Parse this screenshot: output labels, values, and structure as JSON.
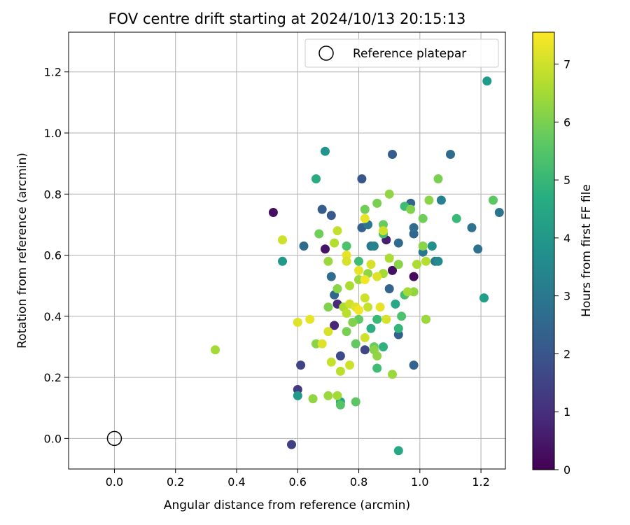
{
  "chart_data": {
    "type": "scatter",
    "title": "FOV centre drift starting at 2024/10/13 20:15:13",
    "xlabel": "Angular distance from reference (arcmin)",
    "ylabel": "Rotation from reference (arcmin)",
    "xlim": [
      -0.15,
      1.28
    ],
    "ylim": [
      -0.1,
      1.33
    ],
    "xticks": [
      "0.0",
      "0.2",
      "0.4",
      "0.6",
      "0.8",
      "1.0",
      "1.2"
    ],
    "yticks": [
      "0.0",
      "0.2",
      "0.4",
      "0.6",
      "0.8",
      "1.0",
      "1.2"
    ],
    "grid": true,
    "legend": {
      "position": "top-right",
      "entries": [
        "Reference platepar"
      ]
    },
    "reference": {
      "x": 0.0,
      "y": 0.0,
      "label": "Reference platepar"
    },
    "colorbar": {
      "label": "Hours from first FF file",
      "range": [
        0,
        7.55
      ],
      "ticks": [
        "0",
        "1",
        "2",
        "3",
        "4",
        "5",
        "6",
        "7"
      ],
      "colormap": "viridis"
    },
    "points": [
      [
        0.52,
        0.74,
        0.3
      ],
      [
        0.69,
        0.62,
        0.4
      ],
      [
        0.98,
        0.53,
        0.2
      ],
      [
        0.91,
        0.55,
        0.3
      ],
      [
        0.89,
        0.65,
        0.6
      ],
      [
        0.72,
        0.37,
        0.8
      ],
      [
        0.73,
        0.44,
        0.9
      ],
      [
        0.58,
        -0.02,
        1.4
      ],
      [
        0.6,
        0.16,
        1.3
      ],
      [
        0.61,
        0.24,
        1.5
      ],
      [
        0.74,
        0.27,
        1.7
      ],
      [
        0.82,
        0.29,
        1.6
      ],
      [
        0.81,
        0.85,
        2.0
      ],
      [
        0.91,
        0.93,
        2.2
      ],
      [
        0.68,
        0.75,
        2.2
      ],
      [
        0.71,
        0.73,
        2.1
      ],
      [
        0.81,
        0.69,
        2.3
      ],
      [
        0.62,
        0.63,
        2.6
      ],
      [
        0.71,
        0.53,
        2.7
      ],
      [
        0.72,
        0.47,
        2.5
      ],
      [
        0.9,
        0.49,
        2.4
      ],
      [
        0.93,
        0.34,
        2.3
      ],
      [
        0.98,
        0.24,
        2.4
      ],
      [
        0.93,
        0.64,
        2.6
      ],
      [
        0.98,
        0.67,
        2.5
      ],
      [
        1.1,
        0.93,
        2.6
      ],
      [
        0.97,
        0.77,
        2.4
      ],
      [
        0.98,
        0.69,
        2.7
      ],
      [
        1.17,
        0.69,
        2.8
      ],
      [
        1.19,
        0.62,
        2.8
      ],
      [
        1.26,
        0.74,
        2.9
      ],
      [
        1.01,
        0.61,
        3.0
      ],
      [
        1.05,
        0.58,
        3.1
      ],
      [
        1.07,
        0.78,
        3.3
      ],
      [
        0.84,
        0.63,
        3.1
      ],
      [
        0.83,
        0.7,
        3.0
      ],
      [
        0.85,
        0.63,
        3.4
      ],
      [
        1.06,
        0.58,
        3.6
      ],
      [
        1.04,
        0.63,
        3.8
      ],
      [
        0.69,
        0.94,
        3.9
      ],
      [
        0.55,
        0.58,
        4.0
      ],
      [
        1.22,
        1.17,
        4.1
      ],
      [
        1.21,
        0.46,
        4.2
      ],
      [
        0.6,
        0.14,
        4.1
      ],
      [
        0.74,
        0.12,
        4.3
      ],
      [
        0.93,
        -0.04,
        4.5
      ],
      [
        0.66,
        0.85,
        4.6
      ],
      [
        0.84,
        0.36,
        4.7
      ],
      [
        0.92,
        0.44,
        4.5
      ],
      [
        0.88,
        0.3,
        4.8
      ],
      [
        0.93,
        0.36,
        5.0
      ],
      [
        0.86,
        0.23,
        5.2
      ],
      [
        0.95,
        0.47,
        5.3
      ],
      [
        0.86,
        0.39,
        5.1
      ],
      [
        0.95,
        0.76,
        5.2
      ],
      [
        1.12,
        0.72,
        5.1
      ],
      [
        0.76,
        0.63,
        5.4
      ],
      [
        0.8,
        0.58,
        5.2
      ],
      [
        0.94,
        0.4,
        5.4
      ],
      [
        0.88,
        0.67,
        5.3
      ],
      [
        1.24,
        0.78,
        5.6
      ],
      [
        0.74,
        0.11,
        5.5
      ],
      [
        0.79,
        0.12,
        5.6
      ],
      [
        0.79,
        0.31,
        5.7
      ],
      [
        0.85,
        0.3,
        5.8
      ],
      [
        0.8,
        0.39,
        5.7
      ],
      [
        0.67,
        0.67,
        5.9
      ],
      [
        0.86,
        0.77,
        6.0
      ],
      [
        0.82,
        0.75,
        5.9
      ],
      [
        0.88,
        0.7,
        5.8
      ],
      [
        0.97,
        0.75,
        6.1
      ],
      [
        1.06,
        0.85,
        6.0
      ],
      [
        1.03,
        0.78,
        6.2
      ],
      [
        0.9,
        0.8,
        6.3
      ],
      [
        1.01,
        0.72,
        5.9
      ],
      [
        0.66,
        0.31,
        6.2
      ],
      [
        0.65,
        0.13,
        6.3
      ],
      [
        0.7,
        0.14,
        6.4
      ],
      [
        0.73,
        0.14,
        6.5
      ],
      [
        0.76,
        0.35,
        6.0
      ],
      [
        0.78,
        0.38,
        6.1
      ],
      [
        0.85,
        0.29,
        6.2
      ],
      [
        0.86,
        0.27,
        6.3
      ],
      [
        0.91,
        0.21,
        6.4
      ],
      [
        0.33,
        0.29,
        6.5
      ],
      [
        0.7,
        0.43,
        6.1
      ],
      [
        0.73,
        0.49,
        6.2
      ],
      [
        0.77,
        0.5,
        6.6
      ],
      [
        0.8,
        0.52,
        6.4
      ],
      [
        0.83,
        0.54,
        6.3
      ],
      [
        0.88,
        0.54,
        6.5
      ],
      [
        0.9,
        0.59,
        6.6
      ],
      [
        0.93,
        0.57,
        6.2
      ],
      [
        0.98,
        0.48,
        6.3
      ],
      [
        1.02,
        0.39,
        6.4
      ],
      [
        0.96,
        0.48,
        6.5
      ],
      [
        0.99,
        0.57,
        6.6
      ],
      [
        1.02,
        0.58,
        6.7
      ],
      [
        1.01,
        0.63,
        6.2
      ],
      [
        0.7,
        0.58,
        6.4
      ],
      [
        0.72,
        0.64,
        6.7
      ],
      [
        0.75,
        0.43,
        6.6
      ],
      [
        0.74,
        0.22,
        6.8
      ],
      [
        0.77,
        0.24,
        7.0
      ],
      [
        0.71,
        0.25,
        6.9
      ],
      [
        0.7,
        0.35,
        7.1
      ],
      [
        0.68,
        0.31,
        7.2
      ],
      [
        0.64,
        0.39,
        7.3
      ],
      [
        0.6,
        0.38,
        7.2
      ],
      [
        0.55,
        0.65,
        7.0
      ],
      [
        0.73,
        0.68,
        6.9
      ],
      [
        0.76,
        0.6,
        7.3
      ],
      [
        0.76,
        0.58,
        7.1
      ],
      [
        0.77,
        0.44,
        7.0
      ],
      [
        0.79,
        0.43,
        7.2
      ],
      [
        0.82,
        0.46,
        7.0
      ],
      [
        0.83,
        0.43,
        6.9
      ],
      [
        0.8,
        0.55,
        7.3
      ],
      [
        0.82,
        0.52,
        7.4
      ],
      [
        0.84,
        0.57,
        7.1
      ],
      [
        0.86,
        0.53,
        7.2
      ],
      [
        0.87,
        0.43,
        7.3
      ],
      [
        0.89,
        0.39,
        7.1
      ],
      [
        0.82,
        0.33,
        7.0
      ],
      [
        0.82,
        0.72,
        7.3
      ],
      [
        0.88,
        0.68,
        7.0
      ],
      [
        0.76,
        0.41,
        6.8
      ],
      [
        0.8,
        0.42,
        7.4
      ]
    ]
  }
}
